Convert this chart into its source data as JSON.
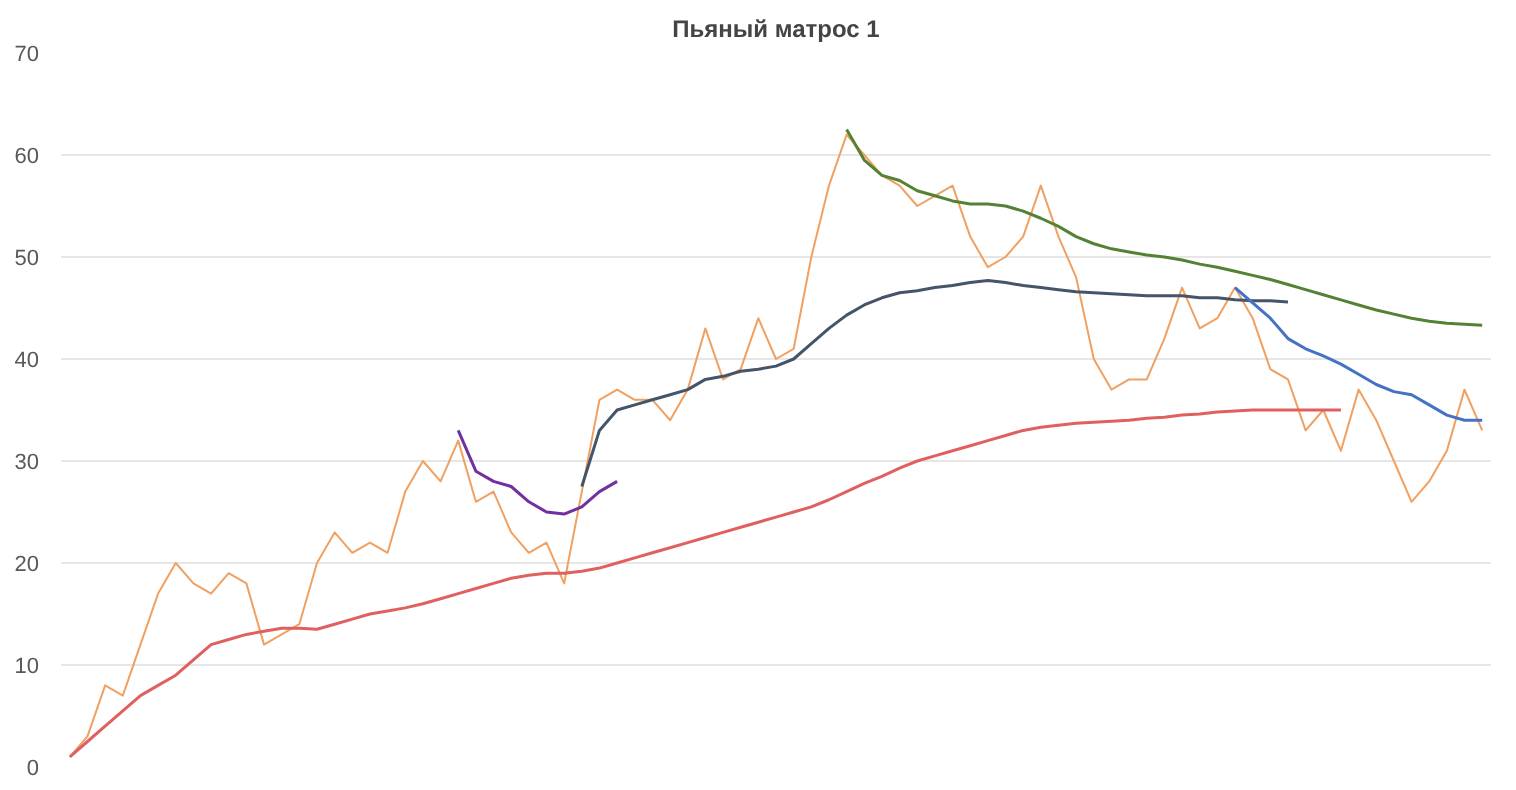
{
  "chart_data": {
    "type": "line",
    "title": "Пьяный матрос 1",
    "categories": [
      null,
      null,
      null,
      null,
      null,
      null,
      null,
      null,
      null,
      null,
      null,
      null,
      null,
      null,
      null,
      null,
      null,
      null,
      null,
      null,
      null,
      null,
      null,
      null,
      null,
      null,
      null,
      null,
      null,
      null,
      null,
      null,
      null,
      null,
      null,
      null,
      null,
      null,
      null,
      null,
      null,
      null,
      null,
      null,
      null,
      null,
      null,
      null,
      null,
      null,
      null,
      null,
      null,
      null,
      null,
      null,
      null,
      null,
      null,
      null,
      null,
      null,
      null,
      null,
      null,
      null,
      null,
      null,
      null,
      null,
      null,
      null,
      null,
      null,
      null,
      null,
      null,
      null,
      null,
      null,
      null
    ],
    "series": [
      {
        "color": "#f0a060",
        "values": [
          1,
          3,
          8,
          7,
          12,
          17,
          20,
          18,
          17,
          19,
          18,
          12,
          13,
          14,
          20,
          23,
          21,
          22,
          21,
          27,
          30,
          28,
          32,
          26,
          27,
          23,
          21,
          22,
          18,
          27,
          36,
          37,
          36,
          36,
          34,
          37,
          43,
          38,
          39,
          44,
          40,
          41,
          50,
          57,
          62,
          60,
          58,
          57,
          55,
          56,
          57,
          52,
          49,
          50,
          52,
          57,
          52,
          48,
          40,
          37,
          38,
          38,
          42,
          47,
          43,
          44,
          47,
          44,
          39,
          38,
          33,
          35,
          31,
          37,
          34,
          30,
          26,
          28,
          31,
          37,
          33
        ]
      },
      {
        "color": "#e06060",
        "values": [
          1,
          2.5,
          4,
          5.5,
          7,
          8,
          9,
          10.5,
          12,
          12.5,
          13,
          13.3,
          13.6,
          13.6,
          13.5,
          14,
          14.5,
          15,
          15.3,
          15.6,
          16,
          16.5,
          17,
          17.5,
          18,
          18.5,
          18.8,
          19,
          19,
          19.2,
          19.5,
          20,
          20.5,
          21,
          21.5,
          22,
          22.5,
          23,
          23.5,
          24,
          24.5,
          25,
          25.5,
          26.2,
          27,
          27.8,
          28.5,
          29.3,
          30,
          30.5,
          31,
          31.5,
          32,
          32.5,
          33,
          33.3,
          33.5,
          33.7,
          33.8,
          33.9,
          34,
          34.2,
          34.3,
          34.5,
          34.6,
          34.8,
          34.9,
          35,
          35,
          35,
          35,
          35,
          35,
          null,
          null,
          null,
          null,
          null,
          null,
          null,
          null
        ]
      },
      {
        "color": "#7030a0",
        "values": [
          null,
          null,
          null,
          null,
          null,
          null,
          null,
          null,
          null,
          null,
          null,
          null,
          null,
          null,
          null,
          null,
          null,
          null,
          null,
          null,
          null,
          null,
          33,
          29,
          28,
          27.5,
          26,
          25,
          24.8,
          25.5,
          27,
          28,
          null,
          null,
          null,
          null,
          null,
          null,
          null,
          null,
          null,
          null,
          null,
          null,
          null,
          null,
          null,
          null,
          null,
          null,
          null,
          null,
          null,
          null,
          null,
          null,
          null,
          null,
          null,
          null,
          null,
          null,
          null,
          null,
          null,
          null,
          null,
          null,
          null,
          null,
          null,
          null,
          null,
          null,
          null,
          null,
          null,
          null,
          null,
          null,
          null
        ]
      },
      {
        "color": "#44546a",
        "values": [
          null,
          null,
          null,
          null,
          null,
          null,
          null,
          null,
          null,
          null,
          null,
          null,
          null,
          null,
          null,
          null,
          null,
          null,
          null,
          null,
          null,
          null,
          null,
          null,
          null,
          null,
          null,
          null,
          null,
          27.5,
          33,
          35,
          35.5,
          36,
          36.5,
          37,
          38,
          38.3,
          38.8,
          39,
          39.3,
          40,
          41.5,
          43,
          44.3,
          45.3,
          46,
          46.5,
          46.7,
          47,
          47.2,
          47.5,
          47.7,
          47.5,
          47.2,
          47,
          46.8,
          46.6,
          46.5,
          46.4,
          46.3,
          46.2,
          46.2,
          46.2,
          46,
          46,
          45.8,
          45.7,
          45.7,
          45.6,
          null,
          null,
          null,
          null,
          null,
          null,
          null,
          null,
          null,
          null,
          null
        ]
      },
      {
        "color": "#548235",
        "values": [
          null,
          null,
          null,
          null,
          null,
          null,
          null,
          null,
          null,
          null,
          null,
          null,
          null,
          null,
          null,
          null,
          null,
          null,
          null,
          null,
          null,
          null,
          null,
          null,
          null,
          null,
          null,
          null,
          null,
          null,
          null,
          null,
          null,
          null,
          null,
          null,
          null,
          null,
          null,
          null,
          null,
          null,
          null,
          null,
          62.5,
          59.5,
          58,
          57.5,
          56.5,
          56,
          55.5,
          55.2,
          55.2,
          55,
          54.5,
          53.8,
          53,
          52,
          51.3,
          50.8,
          50.5,
          50.2,
          50,
          49.7,
          49.3,
          49,
          48.6,
          48.2,
          47.8,
          47.3,
          46.8,
          46.3,
          45.8,
          45.3,
          44.8,
          44.4,
          44,
          43.7,
          43.5,
          43.4,
          43.3
        ]
      },
      {
        "color": "#4472c4",
        "values": [
          null,
          null,
          null,
          null,
          null,
          null,
          null,
          null,
          null,
          null,
          null,
          null,
          null,
          null,
          null,
          null,
          null,
          null,
          null,
          null,
          null,
          null,
          null,
          null,
          null,
          null,
          null,
          null,
          null,
          null,
          null,
          null,
          null,
          null,
          null,
          null,
          null,
          null,
          null,
          null,
          null,
          null,
          null,
          null,
          null,
          null,
          null,
          null,
          null,
          null,
          null,
          null,
          null,
          null,
          null,
          null,
          null,
          null,
          null,
          null,
          null,
          null,
          null,
          null,
          null,
          null,
          47,
          45.5,
          44,
          42,
          41,
          40.3,
          39.5,
          38.5,
          37.5,
          36.8,
          36.5,
          35.5,
          34.5,
          34,
          34
        ]
      }
    ],
    "ylim": [
      0,
      70
    ],
    "yticks": [
      0,
      10,
      20,
      30,
      40,
      50,
      60,
      70
    ],
    "grid": "y",
    "tick_labels": "y"
  }
}
